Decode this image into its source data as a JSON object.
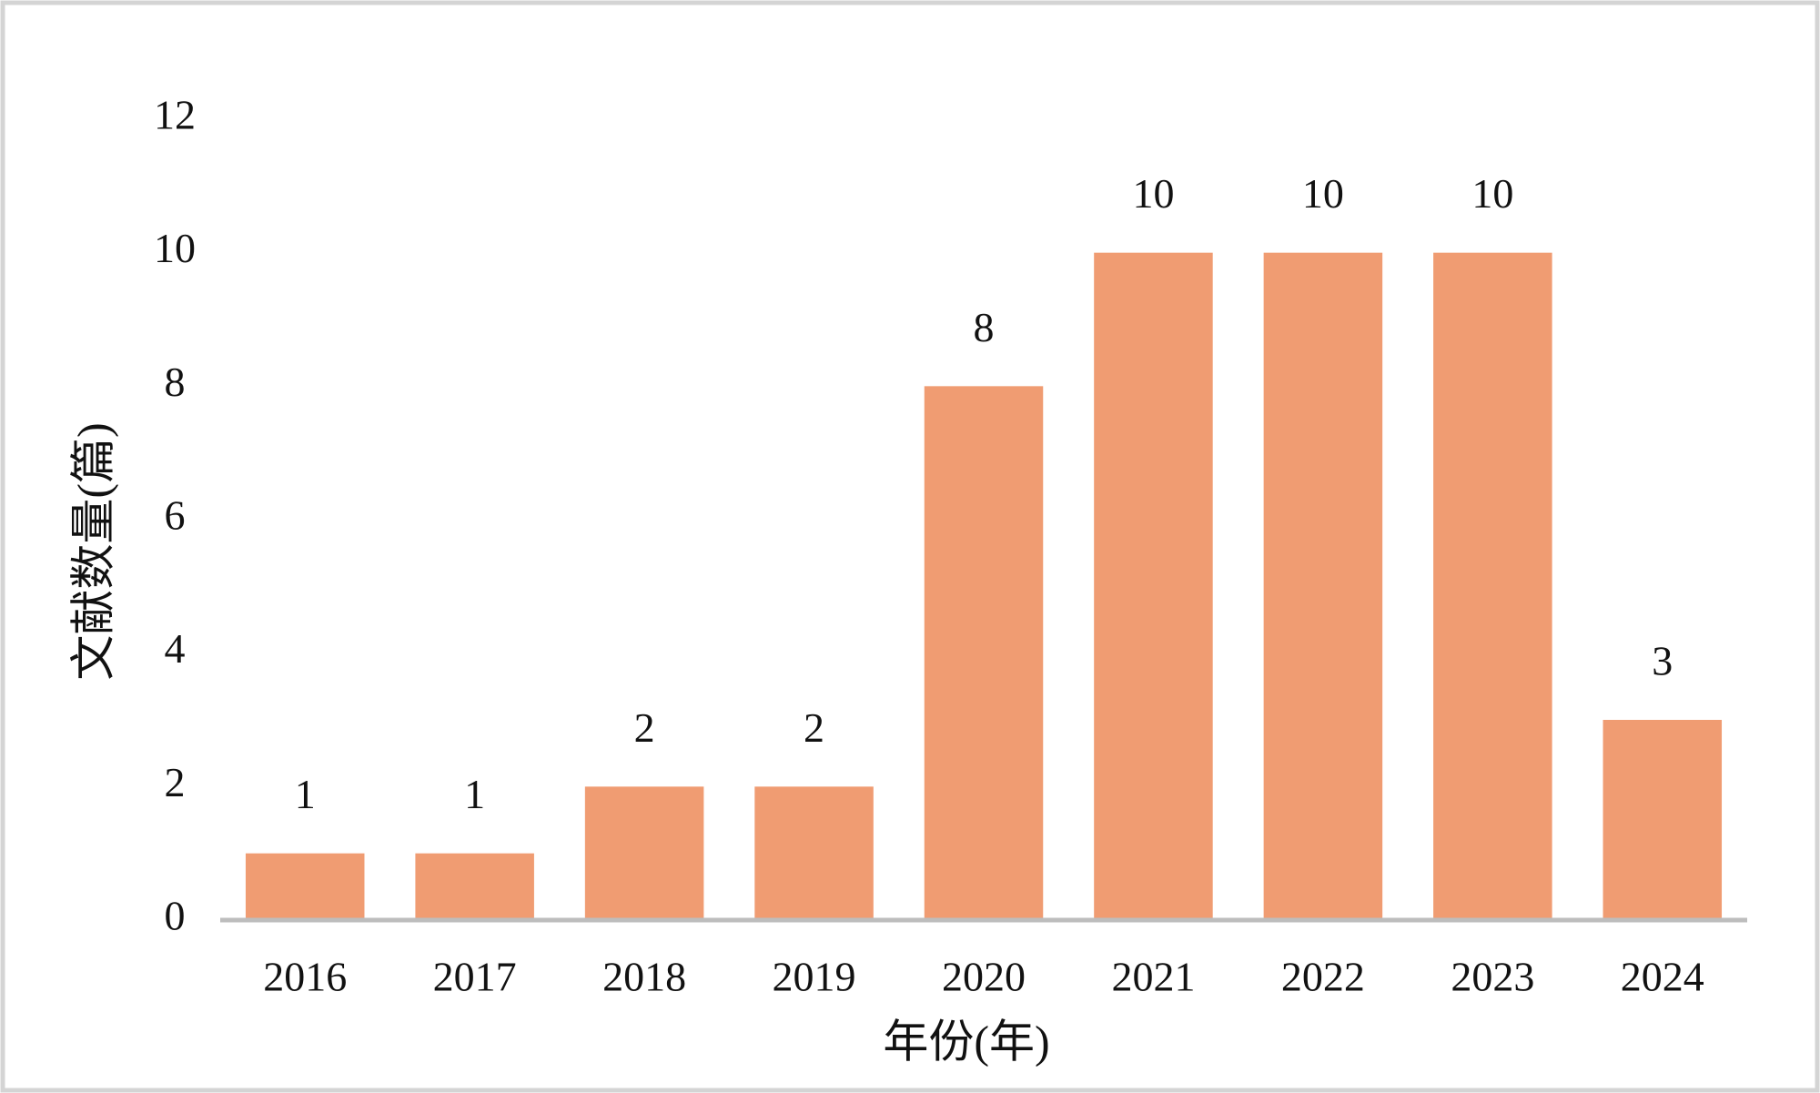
{
  "chart_data": {
    "type": "bar",
    "categories": [
      "2016",
      "2017",
      "2018",
      "2019",
      "2020",
      "2021",
      "2022",
      "2023",
      "2024"
    ],
    "values": [
      1,
      1,
      2,
      2,
      8,
      10,
      10,
      10,
      3
    ],
    "color": "#f09c72",
    "x_label": "年份(年)",
    "y_label": "文献数量(篇)",
    "ylim": [
      0,
      12
    ],
    "yticks": [
      0,
      2,
      4,
      6,
      8,
      10,
      12
    ],
    "grid": false
  }
}
